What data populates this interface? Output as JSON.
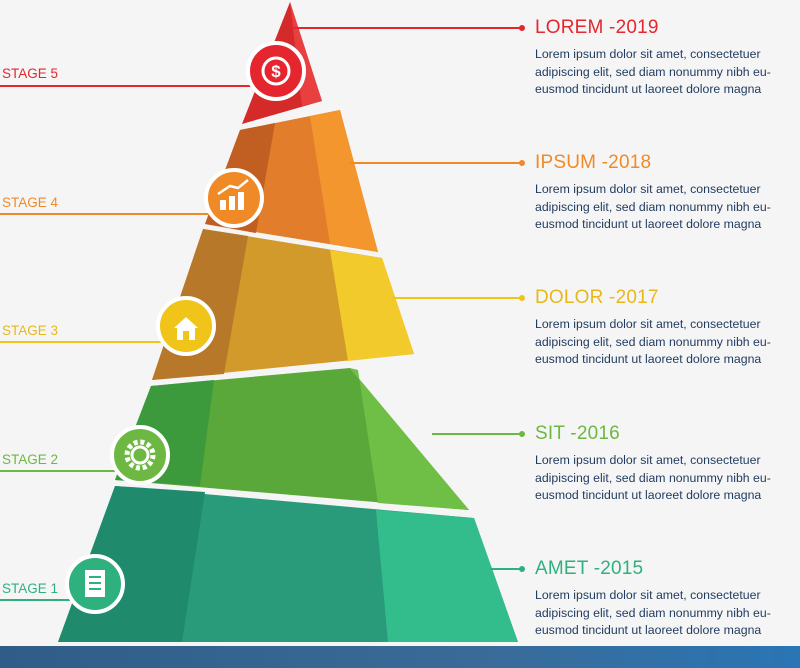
{
  "colors": {
    "red": "#e5262e",
    "orange": "#f08a26",
    "yellow": "#f0c419",
    "green": "#6db843",
    "teal": "#2fb07f",
    "text_dark": "#1e3a5f"
  },
  "stages": [
    {
      "stage_label": "STAGE 5",
      "title": "LOREM -2019",
      "description": "Lorem ipsum dolor sit amet, consectetuer adipiscing elit, sed diam nonummy nibh eu-eusmod tincidunt ut laoreet dolore magna",
      "icon": "dollar-coin-icon",
      "color": "#e5262e"
    },
    {
      "stage_label": "STAGE 4",
      "title": "IPSUM -2018",
      "description": "Lorem ipsum dolor sit amet, consectetuer adipiscing elit, sed diam nonummy nibh eu-eusmod tincidunt ut laoreet dolore magna",
      "icon": "growth-chart-icon",
      "color": "#f08a26"
    },
    {
      "stage_label": "STAGE 3",
      "title": "DOLOR -2017",
      "description": "Lorem ipsum dolor sit amet, consectetuer adipiscing elit, sed diam nonummy nibh eu-eusmod tincidunt ut laoreet dolore magna",
      "icon": "house-icon",
      "color": "#f0c419"
    },
    {
      "stage_label": "STAGE 2",
      "title": "SIT -2016",
      "description": "Lorem ipsum dolor sit amet, consectetuer adipiscing elit, sed diam nonummy nibh eu-eusmod tincidunt ut laoreet dolore magna",
      "icon": "gear-icon",
      "color": "#6db843"
    },
    {
      "stage_label": "STAGE 1",
      "title": "AMET -2015",
      "description": "Lorem ipsum dolor sit amet, consectetuer adipiscing elit, sed diam nonummy nibh eu-eusmod tincidunt ut laoreet dolore magna",
      "icon": "document-icon",
      "color": "#2fb07f"
    }
  ]
}
